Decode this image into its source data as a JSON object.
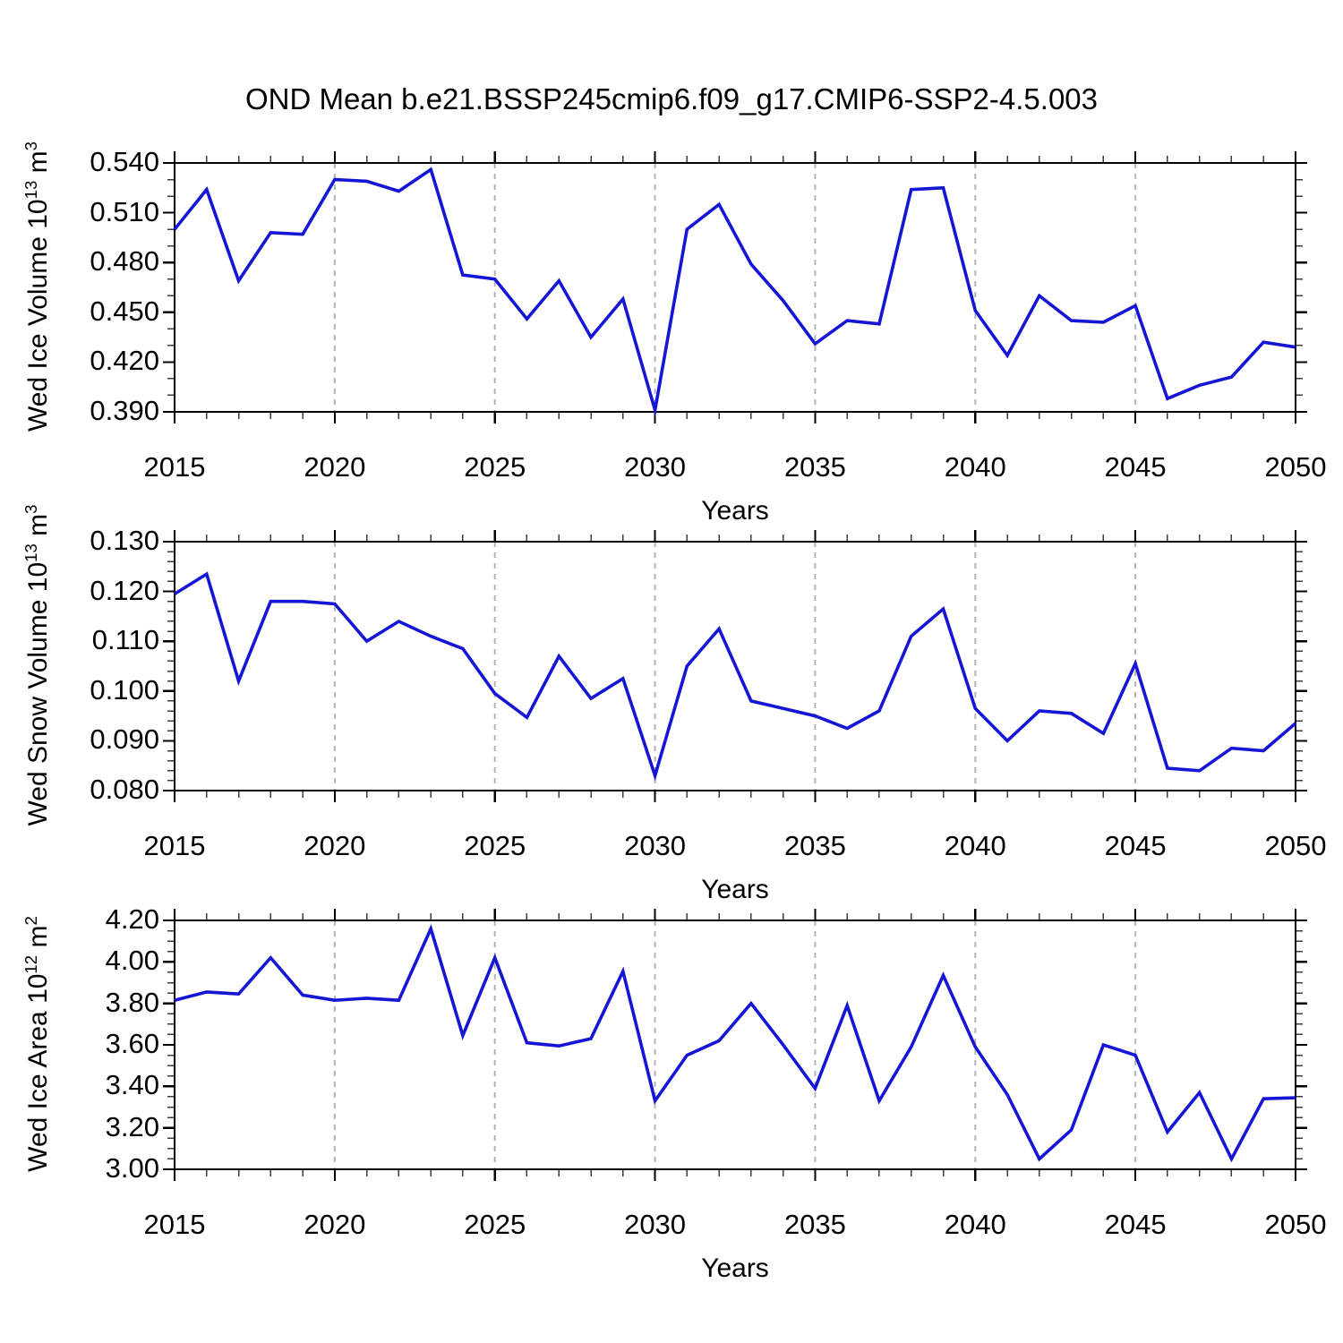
{
  "title": "OND Mean b.e21.BSSP245cmip6.f09_g17.CMIP6-SSP2-4.5.003",
  "xlabel": "Years",
  "colors": {
    "line": "#1515d6",
    "grid": "#b4b4b4",
    "frame": "#000000",
    "major_tick": "#000000",
    "minor_tick": "#3c3c3c"
  },
  "x_axis": {
    "start": 2015,
    "end": 2050,
    "major_tick_years": [
      2015,
      2020,
      2025,
      2030,
      2035,
      2040,
      2045,
      2050
    ],
    "major_tick_labels": [
      "2015",
      "2020",
      "2025",
      "2030",
      "2035",
      "2040",
      "2045",
      "2050"
    ],
    "minor_step": 1,
    "grid_years": [
      2020,
      2025,
      2030,
      2035,
      2040,
      2045
    ],
    "grid_style": "dashed"
  },
  "chart_data": [
    {
      "type": "line",
      "name": "wed-ice-volume",
      "ylabel": "Wed Ice Volume 10^13^ m^3^",
      "xlabel": "Years",
      "x": [
        2015,
        2016,
        2017,
        2018,
        2019,
        2020,
        2021,
        2022,
        2023,
        2024,
        2025,
        2026,
        2027,
        2028,
        2029,
        2030,
        2031,
        2032,
        2033,
        2034,
        2035,
        2036,
        2037,
        2038,
        2039,
        2040,
        2041,
        2042,
        2043,
        2044,
        2045,
        2046,
        2047,
        2048,
        2049,
        2050
      ],
      "values": [
        0.5,
        0.524,
        0.469,
        0.498,
        0.497,
        0.53,
        0.529,
        0.523,
        0.536,
        0.4725,
        0.47,
        0.446,
        0.469,
        0.435,
        0.458,
        0.391,
        0.5,
        0.515,
        0.479,
        0.457,
        0.431,
        0.445,
        0.443,
        0.524,
        0.525,
        0.451,
        0.424,
        0.46,
        0.445,
        0.444,
        0.454,
        0.398,
        0.406,
        0.411,
        0.432,
        0.429
      ],
      "ylim": [
        0.39,
        0.54
      ],
      "ytick_values": [
        0.39,
        0.42,
        0.45,
        0.48,
        0.51,
        0.54
      ],
      "ytick_labels": [
        "0.390",
        "0.420",
        "0.450",
        "0.480",
        "0.510",
        "0.540"
      ],
      "y_minor_step": 0.01,
      "grid": "vertical-dashed",
      "legend": "none"
    },
    {
      "type": "line",
      "name": "wed-snow-volume",
      "ylabel": "Wed Snow Volume 10^13^ m^3^",
      "xlabel": "Years",
      "x": [
        2015,
        2016,
        2017,
        2018,
        2019,
        2020,
        2021,
        2022,
        2023,
        2024,
        2025,
        2026,
        2027,
        2028,
        2029,
        2030,
        2031,
        2032,
        2033,
        2034,
        2035,
        2036,
        2037,
        2038,
        2039,
        2040,
        2041,
        2042,
        2043,
        2044,
        2045,
        2046,
        2047,
        2048,
        2049,
        2050
      ],
      "values": [
        0.1195,
        0.1235,
        0.102,
        0.118,
        0.118,
        0.1175,
        0.11,
        0.114,
        0.111,
        0.1085,
        0.0995,
        0.0947,
        0.107,
        0.0985,
        0.1025,
        0.083,
        0.105,
        0.1125,
        0.098,
        0.0965,
        0.095,
        0.0925,
        0.096,
        0.111,
        0.1165,
        0.0965,
        0.09,
        0.096,
        0.0955,
        0.0915,
        0.1055,
        0.0845,
        0.084,
        0.0885,
        0.088,
        0.0935
      ],
      "ylim": [
        0.08,
        0.13
      ],
      "ytick_values": [
        0.08,
        0.09,
        0.1,
        0.11,
        0.12,
        0.13
      ],
      "ytick_labels": [
        "0.080",
        "0.090",
        "0.100",
        "0.110",
        "0.120",
        "0.130"
      ],
      "y_minor_step": 0.002,
      "grid": "vertical-dashed",
      "legend": "none"
    },
    {
      "type": "line",
      "name": "wed-ice-area",
      "ylabel": "Wed Ice Area 10^12^ m^2^",
      "xlabel": "Years",
      "x": [
        2015,
        2016,
        2017,
        2018,
        2019,
        2020,
        2021,
        2022,
        2023,
        2024,
        2025,
        2026,
        2027,
        2028,
        2029,
        2030,
        2031,
        2032,
        2033,
        2034,
        2035,
        2036,
        2037,
        2038,
        2039,
        2040,
        2041,
        2042,
        2043,
        2044,
        2045,
        2046,
        2047,
        2048,
        2049,
        2050
      ],
      "values": [
        3.815,
        3.855,
        3.845,
        4.02,
        3.84,
        3.815,
        3.825,
        3.815,
        4.16,
        3.645,
        4.02,
        3.61,
        3.595,
        3.63,
        3.955,
        3.33,
        3.55,
        3.62,
        3.8,
        3.6,
        3.39,
        3.79,
        3.33,
        3.59,
        3.935,
        3.59,
        3.36,
        3.05,
        3.19,
        3.6,
        3.55,
        3.18,
        3.37,
        3.05,
        3.34,
        3.345
      ],
      "ylim": [
        3.0,
        4.2
      ],
      "ytick_values": [
        3.0,
        3.2,
        3.4,
        3.6,
        3.8,
        4.0,
        4.2
      ],
      "ytick_labels": [
        "3.00",
        "3.20",
        "3.40",
        "3.60",
        "3.80",
        "4.00",
        "4.20"
      ],
      "y_minor_step": 0.05,
      "grid": "vertical-dashed",
      "legend": "none"
    }
  ]
}
